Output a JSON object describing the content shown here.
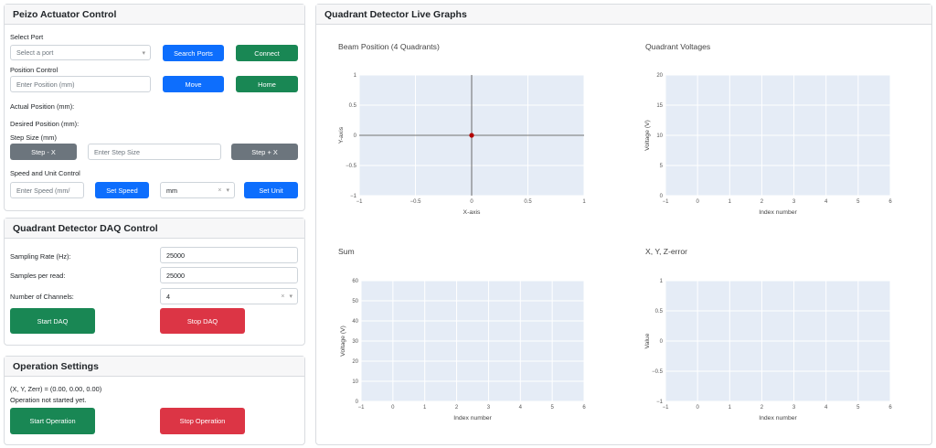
{
  "piezo": {
    "title": "Peizo Actuator Control",
    "select_port_label": "Select Port",
    "port_placeholder": "Select a port",
    "search_ports": "Search Ports",
    "connect": "Connect",
    "position_control_label": "Position Control",
    "position_placeholder": "Enter Position (mm)",
    "move": "Move",
    "home": "Home",
    "actual_position": "Actual Position (mm):",
    "desired_position": "Desired Position (mm):",
    "step_size_label": "Step Size (mm)",
    "step_minus": "Step - X",
    "step_placeholder": "Enter Step Size",
    "step_plus": "Step + X",
    "speed_unit_label": "Speed and Unit Control",
    "speed_placeholder": "Enter Speed (mm/",
    "set_speed": "Set Speed",
    "unit_value": "mm",
    "set_unit": "Set Unit"
  },
  "daq": {
    "title": "Quadrant Detector DAQ Control",
    "sampling_rate_label": "Sampling Rate (Hz):",
    "sampling_rate_value": "25000",
    "samples_label": "Samples per read:",
    "samples_value": "25000",
    "channels_label": "Number of Channels:",
    "channels_value": "4",
    "start": "Start DAQ",
    "stop": "Stop DAQ"
  },
  "operation": {
    "title": "Operation Settings",
    "readout": "(X, Y, Zerr) = (0.00, 0.00, 0.00)",
    "status": "Operation not started yet.",
    "start": "Start Operation",
    "stop": "Stop Operation"
  },
  "graphs_title": "Quadrant Detector Live Graphs",
  "icons": {
    "dropdown": "chevron-down-icon",
    "clear": "clear-x-icon"
  },
  "colors": {
    "blue": "#0d6efd",
    "green": "#198754",
    "gray": "#6c757d",
    "red": "#dc3545",
    "plot_bg": "#e5ecf6",
    "marker": "#b30000"
  },
  "chart_data": [
    {
      "id": "beam",
      "type": "scatter",
      "title": "Beam Position (4 Quadrants)",
      "xlabel": "X-axis",
      "ylabel": "Y-axis",
      "xlim": [
        -1,
        1
      ],
      "ylim": [
        -1,
        1
      ],
      "xticks": [
        -1,
        -0.5,
        0,
        0.5,
        1
      ],
      "yticks": [
        -1,
        -0.5,
        0,
        0.5,
        1
      ],
      "xtick_labels": [
        "−1",
        "−0.5",
        "0",
        "0.5",
        "1"
      ],
      "ytick_labels": [
        "−1",
        "−0.5",
        "0",
        "0.5",
        "1"
      ],
      "zero_lines": true,
      "points": [
        {
          "x": 0,
          "y": 0
        }
      ],
      "grid": true
    },
    {
      "id": "voltages",
      "type": "line",
      "title": "Quadrant Voltages",
      "xlabel": "Index number",
      "ylabel": "Voltage (V)",
      "xlim": [
        -1,
        6
      ],
      "ylim": [
        0,
        20
      ],
      "xticks": [
        -1,
        0,
        1,
        2,
        3,
        4,
        5,
        6
      ],
      "yticks": [
        0,
        5,
        10,
        15,
        20
      ],
      "xtick_labels": [
        "−1",
        "0",
        "1",
        "2",
        "3",
        "4",
        "5",
        "6"
      ],
      "ytick_labels": [
        "0",
        "5",
        "10",
        "15",
        "20"
      ],
      "series": [],
      "grid": true
    },
    {
      "id": "sum",
      "type": "line",
      "title": "Sum",
      "xlabel": "Index number",
      "ylabel": "Voltage (V)",
      "xlim": [
        -1,
        6
      ],
      "ylim": [
        0,
        60
      ],
      "xticks": [
        -1,
        0,
        1,
        2,
        3,
        4,
        5,
        6
      ],
      "yticks": [
        0,
        10,
        20,
        30,
        40,
        50,
        60
      ],
      "xtick_labels": [
        "−1",
        "0",
        "1",
        "2",
        "3",
        "4",
        "5",
        "6"
      ],
      "ytick_labels": [
        "0",
        "10",
        "20",
        "30",
        "40",
        "50",
        "60"
      ],
      "series": [],
      "grid": true
    },
    {
      "id": "xyz",
      "type": "line",
      "title": "X, Y, Z-error",
      "xlabel": "Index number",
      "ylabel": "Value",
      "xlim": [
        -1,
        6
      ],
      "ylim": [
        -1,
        1
      ],
      "xticks": [
        -1,
        0,
        1,
        2,
        3,
        4,
        5,
        6
      ],
      "yticks": [
        -1,
        -0.5,
        0,
        0.5,
        1
      ],
      "xtick_labels": [
        "−1",
        "0",
        "1",
        "2",
        "3",
        "4",
        "5",
        "6"
      ],
      "ytick_labels": [
        "−1",
        "−0.5",
        "0",
        "0.5",
        "1"
      ],
      "series": [],
      "grid": true
    }
  ]
}
